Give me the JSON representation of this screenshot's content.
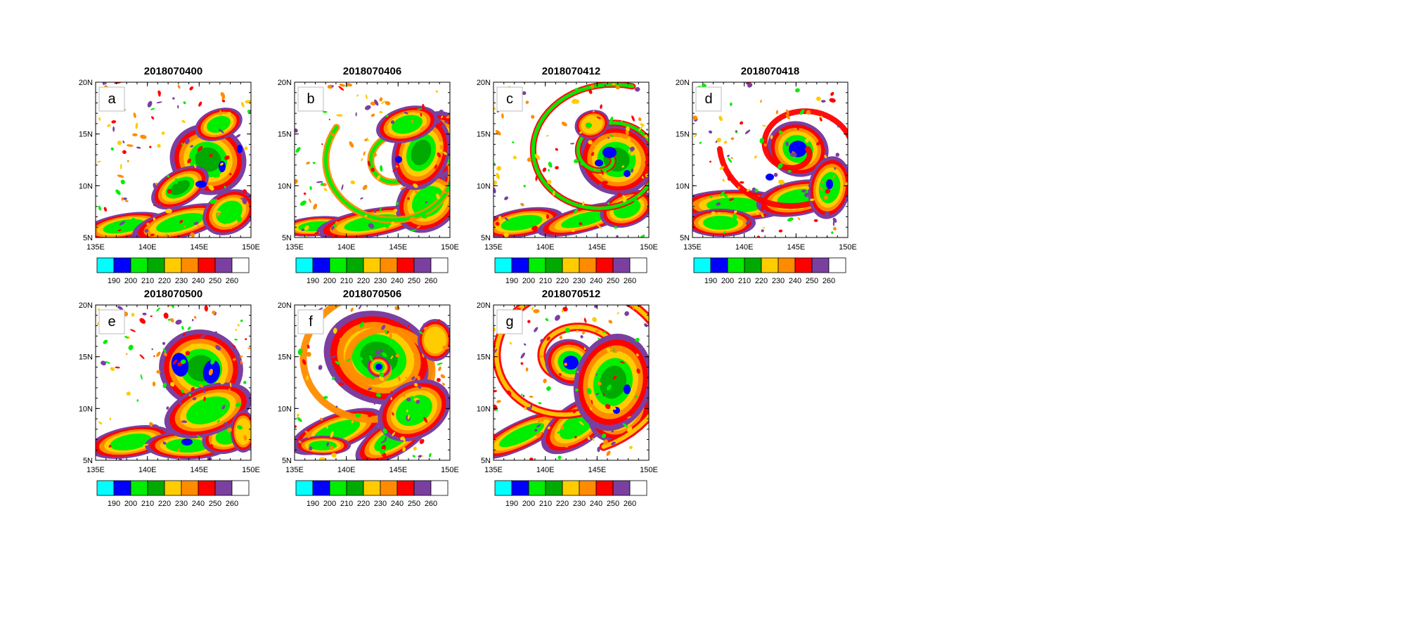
{
  "axes": {
    "lon_ticks": [
      "135E",
      "140E",
      "145E",
      "150E"
    ],
    "lat_ticks": [
      "20N",
      "15N",
      "10N",
      "5N"
    ]
  },
  "colorbar": {
    "colors": [
      "#00ffff",
      "#0000ff",
      "#00ee00",
      "#00aa00",
      "#ffcc00",
      "#ff8c00",
      "#ff0000",
      "#7b3fa0",
      "#ffffff"
    ],
    "labels": [
      "190",
      "200",
      "210",
      "220",
      "230",
      "240",
      "250",
      "260"
    ]
  },
  "panels": [
    {
      "title": "2018070400",
      "letter": "a"
    },
    {
      "title": "2018070406",
      "letter": "b"
    },
    {
      "title": "2018070412",
      "letter": "c"
    },
    {
      "title": "2018070418",
      "letter": "d"
    },
    {
      "title": "2018070500",
      "letter": "e"
    },
    {
      "title": "2018070506",
      "letter": "f"
    },
    {
      "title": "2018070512",
      "letter": "g"
    }
  ]
}
